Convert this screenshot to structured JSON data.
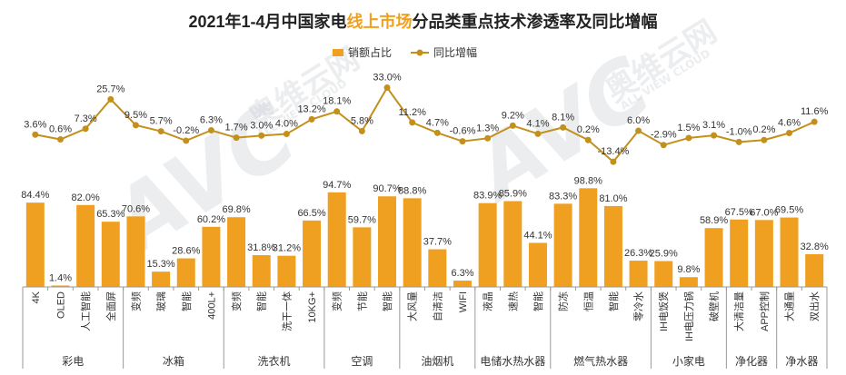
{
  "title": {
    "prefix": "2021年1-4月中国家电",
    "highlight": "线上市场",
    "suffix": "分品类重点技术渗透率及同比增幅"
  },
  "watermark": {
    "logo": "AVC",
    "cn": "奥维云网",
    "en": "ALL VIEW CLOUD"
  },
  "colors": {
    "bar": "#f0a020",
    "line": "#c4901c",
    "highlight": "#f0a020",
    "axis": "#999999"
  },
  "chart_data": {
    "type": "bar",
    "categories": [
      "4K",
      "OLED",
      "人工智能",
      "全面屏",
      "变频",
      "玻璃",
      "智能",
      "400L+",
      "变频",
      "智能",
      "洗干一体",
      "10KG+",
      "变频",
      "节能",
      "智能",
      "大风量",
      "自清洁",
      "WIFI",
      "液晶",
      "速热",
      "智能",
      "防冻",
      "恒温",
      "智能",
      "零冷水",
      "IH电饭煲",
      "IH电压力锅",
      "破壁机",
      "大清洁量",
      "APP控制",
      "大通量",
      "双出水"
    ],
    "groups": [
      {
        "name": "彩电",
        "count": 4
      },
      {
        "name": "冰箱",
        "count": 4
      },
      {
        "name": "洗衣机",
        "count": 4
      },
      {
        "name": "空调",
        "count": 3
      },
      {
        "name": "油烟机",
        "count": 3
      },
      {
        "name": "电储水热水器",
        "count": 3
      },
      {
        "name": "燃气热水器",
        "count": 4
      },
      {
        "name": "小家电",
        "count": 3
      },
      {
        "name": "净化器",
        "count": 2
      },
      {
        "name": "净水器",
        "count": 2
      }
    ],
    "series": [
      {
        "name": "销额占比",
        "type": "bar",
        "values": [
          84.4,
          1.4,
          82.0,
          65.3,
          70.6,
          15.3,
          28.6,
          60.2,
          69.8,
          31.8,
          31.2,
          66.5,
          94.7,
          59.7,
          90.7,
          88.8,
          37.7,
          6.3,
          83.9,
          85.9,
          44.1,
          83.3,
          98.8,
          81.0,
          26.3,
          25.9,
          9.8,
          58.9,
          67.5,
          67.0,
          69.5,
          32.8
        ],
        "labels": [
          "84.4%",
          "1.4%",
          "82.0%",
          "65.3%",
          "70.6%",
          "15.3%",
          "28.6%",
          "60.2%",
          "69.8%",
          "31.8%",
          "31.2%",
          "66.5%",
          "94.7%",
          "59.7%",
          "90.7%",
          "88.8%",
          "37.7%",
          "6.3%",
          "83.9%",
          "85.9%",
          "44.1%",
          "83.3%",
          "98.8%",
          "81.0%",
          "26.3%",
          "25.9%",
          "9.8%",
          "58.9%",
          "67.5%",
          "67.0%",
          "69.5%",
          "32.8%"
        ]
      },
      {
        "name": "同比增幅",
        "type": "line",
        "values": [
          3.6,
          0.6,
          7.3,
          25.7,
          9.5,
          5.7,
          -0.2,
          6.3,
          1.7,
          3.0,
          4.0,
          13.2,
          18.1,
          5.8,
          33.0,
          11.2,
          4.7,
          -0.6,
          1.3,
          9.2,
          4.1,
          8.1,
          0.2,
          -13.4,
          6.0,
          -2.9,
          1.5,
          3.1,
          -1.0,
          0.2,
          4.6,
          11.6
        ],
        "labels": [
          "3.6%",
          "0.6%",
          "7.3%",
          "25.7%",
          "9.5%",
          "5.7%",
          "-0.2%",
          "6.3%",
          "1.7%",
          "3.0%",
          "4.0%",
          "13.2%",
          "18.1%",
          "5.8%",
          "33.0%",
          "11.2%",
          "4.7%",
          "-0.6%",
          "1.3%",
          "9.2%",
          "4.1%",
          "8.1%",
          "0.2%",
          "-13.4%",
          "6.0%",
          "-2.9%",
          "1.5%",
          "3.1%",
          "-1.0%",
          "0.2%",
          "4.6%",
          "11.6%"
        ]
      }
    ],
    "ylim_bar": [
      0,
      100
    ],
    "ylim_line": [
      -15,
      35
    ],
    "legend_position": "top-center",
    "grid": false
  }
}
